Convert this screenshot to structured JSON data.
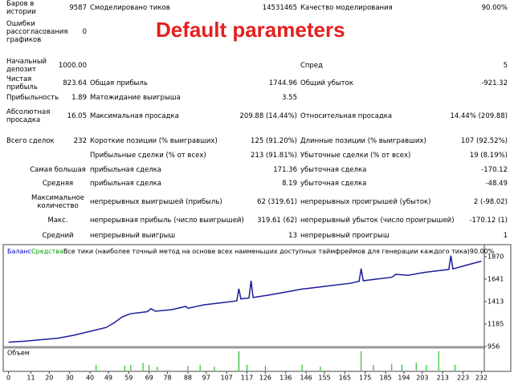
{
  "report": {
    "title": "Default parameters",
    "rows": [
      {
        "l1": "Баров в истории",
        "v1": "9587",
        "l2": "Смоделировано тиков",
        "v2": "14531465",
        "l3": "Качество моделирования",
        "v3": "90.00%"
      },
      {
        "l1": "Ошибки рассогласования графиков",
        "v1": "0"
      },
      {
        "l1": "Начальный депозит",
        "v1": "1000.00",
        "l3": "Спред",
        "v3": "5"
      },
      {
        "l1": "Чистая прибыль",
        "v1": "823.64",
        "l2": "Общая прибыль",
        "v2": "1744.96",
        "l3": "Общий убыток",
        "v3": "-921.32"
      },
      {
        "l1": "Прибыльность",
        "v1": "1.89",
        "l2": "Матожидание выигрыша",
        "v2": "3.55"
      },
      {
        "l1": "Абсолютная просадка",
        "v1": "16.05",
        "l2": "Максимальная просадка",
        "v2": "209.88 (14.44%)",
        "l3": "Относительная просадка",
        "v3": "14.44% (209.88)"
      },
      {
        "l1": "Всего сделок",
        "v1": "232",
        "l2": "Короткие позиции (% выигравших)",
        "v2": "125 (91.20%)",
        "l3": "Длинные позиции (% выигравших)",
        "v3": "107 (92.52%)"
      },
      {
        "l2": "Прибыльные сделки (% от всех)",
        "v2": "213 (91.81%)",
        "l3": "Убыточные сделки (% от всех)",
        "v3": "19 (8.19%)"
      },
      {
        "l1r": "Самая большая",
        "l2": "прибыльная сделка",
        "v2": "171.36",
        "l3": "убыточная сделка",
        "v3": "-170.12"
      },
      {
        "l1r": "Средняя",
        "l2": "прибыльная сделка",
        "v2": "8.19",
        "l3": "убыточная сделка",
        "v3": "-48.49"
      },
      {
        "l1r": "Максимальное количество",
        "l2": "непрерывных выигрышей (прибыль)",
        "v2": "62 (319.61)",
        "l3": "непрерывных проигрышей (убыток)",
        "v3": "2 (-98.02)"
      },
      {
        "l1r": "Макс.",
        "l2": "непрерывная прибыль (число выигрышей)",
        "v2": "319.61 (62)",
        "l3": "непрерывный убыток (число проигрышей)",
        "v3": "-170.12 (1)"
      },
      {
        "l1r": "Средний",
        "l2": "непрерывный выигрыш",
        "v2": "13",
        "l3": "непрерывный проигрыш",
        "v3": "1"
      }
    ]
  },
  "chart_data": {
    "type": "line",
    "legend": [
      "Баланс",
      "Средства",
      "Все тики (наиболее точный метод на основе всех наименьших доступных таймфреймов для генерации каждого тика)",
      "90.00%"
    ],
    "legend_colors": [
      "#0000c0",
      "#00a000",
      "#000000",
      "#000000"
    ],
    "series": [
      {
        "color": "#1c1c9c",
        "x": [
          0,
          8,
          16,
          24,
          32,
          40,
          48,
          52,
          56,
          60,
          64,
          68,
          70,
          72,
          80,
          87,
          88,
          96,
          104,
          112,
          113,
          114,
          118,
          119,
          120,
          128,
          136,
          144,
          152,
          160,
          168,
          172,
          173,
          174,
          180,
          188,
          190,
          196,
          204,
          212,
          216,
          217,
          218,
          224,
          232
        ],
        "values": [
          1000,
          1010,
          1025,
          1040,
          1070,
          1110,
          1150,
          1200,
          1260,
          1290,
          1300,
          1310,
          1340,
          1315,
          1330,
          1364,
          1345,
          1380,
          1400,
          1420,
          1544,
          1440,
          1450,
          1625,
          1455,
          1480,
          1510,
          1540,
          1560,
          1580,
          1600,
          1620,
          1748,
          1625,
          1640,
          1660,
          1690,
          1680,
          1710,
          1730,
          1740,
          1880,
          1745,
          1780,
          1824
        ]
      }
    ],
    "xlim": [
      -1,
      233
    ],
    "xticks": [
      0,
      11,
      20,
      30,
      40,
      49,
      59,
      69,
      78,
      88,
      97,
      107,
      117,
      126,
      136,
      146,
      155,
      165,
      175,
      185,
      194,
      203,
      213,
      223,
      232
    ],
    "ylim": [
      956,
      1935
    ],
    "yticks": [
      956,
      1185,
      1413,
      1641,
      1870
    ],
    "volume": {
      "title": "Объем",
      "color": "#00b000",
      "ylim": [
        0,
        1
      ],
      "x": [
        43,
        57,
        60,
        66,
        69,
        73,
        88,
        94,
        101,
        113,
        117,
        126,
        144,
        153,
        173,
        179,
        188,
        193,
        200,
        205,
        211,
        219
      ],
      "values": [
        0.3,
        0.25,
        0.3,
        0.4,
        0.3,
        0.2,
        0.25,
        0.3,
        0.2,
        1.0,
        0.3,
        0.25,
        0.3,
        0.2,
        1.0,
        0.3,
        0.35,
        0.3,
        0.4,
        0.3,
        1.0,
        0.3
      ]
    }
  }
}
